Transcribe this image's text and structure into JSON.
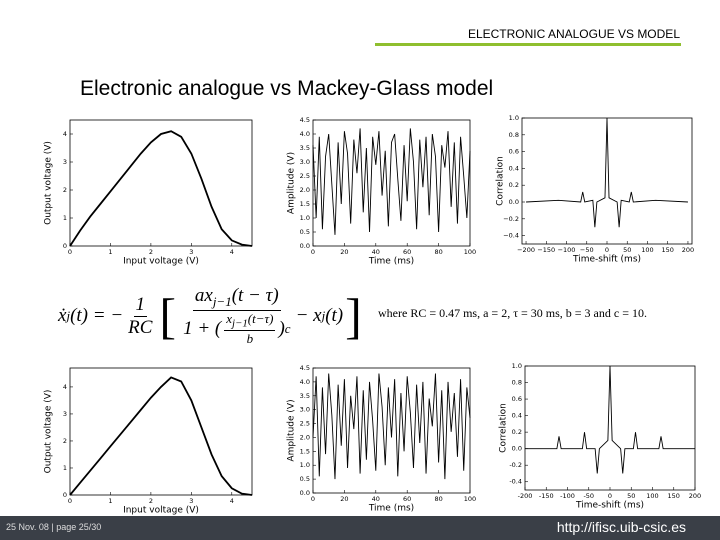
{
  "header": {
    "section": "ELECTRONIC ANALOGUE VS MODEL",
    "title": "Electronic analogue vs Mackey-Glass model"
  },
  "equation": {
    "lhs": "ẋ",
    "lhs_sub": "j",
    "lhs_arg": "(t) = −",
    "coef_num": "1",
    "coef_den": "RC",
    "num": "ax",
    "num_sub": "j−1",
    "num_arg": "(t − τ)",
    "den_one": "1 + (",
    "den_frac_num": "x",
    "den_frac_num_sub": "j−1",
    "den_frac_num_arg": "(t−τ)",
    "den_frac_den": "b",
    "den_close": ")",
    "den_exp": "c",
    "tail": "− x",
    "tail_sub": "j",
    "tail_arg": "(t)",
    "where": "where RC = 0.47 ms, a = 2, τ = 30 ms, b = 3 and c = 10."
  },
  "footer": {
    "date_page": "25 Nov. 08  |  page 25/30",
    "url": "http://ifisc.uib-csic.es"
  },
  "chart_data": [
    {
      "type": "line",
      "xlabel": "Input voltage (V)",
      "ylabel": "Output voltage (V)",
      "color": "#000000",
      "x": [
        0,
        0.25,
        0.5,
        0.75,
        1,
        1.25,
        1.5,
        1.75,
        2,
        2.25,
        2.5,
        2.75,
        3,
        3.25,
        3.5,
        3.75,
        4,
        4.25,
        4.5
      ],
      "values": [
        0,
        0.55,
        1.05,
        1.5,
        1.95,
        2.4,
        2.85,
        3.3,
        3.7,
        4.0,
        4.1,
        3.9,
        3.3,
        2.4,
        1.4,
        0.6,
        0.2,
        0.05,
        0
      ],
      "xlim": [
        0,
        4.5
      ],
      "ylim": [
        0,
        4.5
      ],
      "xticks": [
        0,
        1,
        2,
        3,
        4
      ],
      "yticks": [
        0,
        1,
        2,
        3,
        4
      ]
    },
    {
      "type": "line",
      "xlabel": "Time (ms)",
      "ylabel": "Amplitude (V)",
      "color": "#000000",
      "x": [
        0,
        2,
        4,
        6,
        8,
        10,
        12,
        14,
        16,
        18,
        20,
        22,
        24,
        26,
        28,
        30,
        32,
        34,
        36,
        38,
        40,
        42,
        44,
        46,
        48,
        50,
        52,
        54,
        56,
        58,
        60,
        62,
        64,
        66,
        68,
        70,
        72,
        74,
        76,
        78,
        80,
        82,
        84,
        86,
        88,
        90,
        92,
        94,
        96,
        98,
        100
      ],
      "values": [
        3.6,
        1.0,
        3.9,
        0.6,
        3.2,
        4.0,
        2.2,
        0.4,
        3.7,
        1.5,
        4.1,
        3.3,
        0.8,
        3.8,
        2.6,
        4.2,
        1.2,
        3.5,
        0.5,
        3.9,
        2.9,
        4.1,
        1.8,
        3.4,
        0.7,
        3.7,
        4.0,
        2.4,
        0.9,
        3.6,
        1.6,
        4.2,
        3.0,
        0.6,
        3.8,
        2.1,
        3.9,
        1.1,
        4.0,
        3.2,
        0.5,
        3.6,
        2.8,
        4.1,
        1.4,
        3.7,
        0.8,
        3.9,
        2.5,
        1.0,
        3.4
      ],
      "xlim": [
        0,
        100
      ],
      "ylim": [
        0,
        4.5
      ],
      "xticks": [
        0,
        20,
        40,
        60,
        80,
        100
      ],
      "yticks": [
        {
          "value": 0,
          "label": "0.0"
        },
        0.5,
        {
          "value": 1,
          "label": "1.0"
        },
        1.5,
        {
          "value": 2,
          "label": "2.0"
        },
        2.5,
        {
          "value": 3,
          "label": "3.0"
        },
        3.5,
        {
          "value": 4,
          "label": "4.0"
        },
        4.5
      ]
    },
    {
      "type": "line",
      "xlabel": "Time-shift (ms)",
      "ylabel": "Correlation",
      "color": "#000000",
      "x": [
        -200,
        -120,
        -65,
        -60,
        -55,
        -35,
        -30,
        -25,
        -5,
        0,
        5,
        25,
        30,
        35,
        55,
        60,
        65,
        120,
        200
      ],
      "values": [
        0,
        0.02,
        0,
        0.12,
        0,
        0.02,
        -0.3,
        0,
        0.05,
        1.0,
        0.05,
        0,
        -0.3,
        0.02,
        0,
        0.12,
        0,
        0.02,
        0
      ],
      "xlim": [
        -210,
        210
      ],
      "ylim": [
        -0.5,
        1.0
      ],
      "xticks": [
        {
          "value": -200,
          "label": "−200"
        },
        {
          "value": -150,
          "label": "−150"
        },
        {
          "value": -100,
          "label": "−100"
        },
        {
          "value": -50,
          "label": "−50"
        },
        0,
        50,
        100,
        150,
        200
      ],
      "yticks": [
        {
          "value": -0.4,
          "label": "−0.4"
        },
        {
          "value": -0.2,
          "label": "−0.2"
        },
        {
          "value": 0,
          "label": "0.0"
        },
        0.2,
        0.4,
        0.6,
        0.8,
        {
          "value": 1,
          "label": "1.0"
        }
      ]
    },
    {
      "type": "line",
      "xlabel": "Input voltage (V)",
      "ylabel": "Output voltage (V)",
      "color": "#000000",
      "x": [
        0,
        0.25,
        0.5,
        0.75,
        1,
        1.25,
        1.5,
        1.75,
        2,
        2.25,
        2.5,
        2.75,
        3,
        3.25,
        3.5,
        3.75,
        4,
        4.25,
        4.5
      ],
      "values": [
        0,
        0.45,
        0.9,
        1.35,
        1.8,
        2.25,
        2.7,
        3.15,
        3.6,
        4.0,
        4.35,
        4.2,
        3.5,
        2.5,
        1.5,
        0.7,
        0.25,
        0.05,
        0
      ],
      "xlim": [
        0,
        4.5
      ],
      "ylim": [
        0,
        4.7
      ],
      "xticks": [
        0,
        1,
        2,
        3,
        4
      ],
      "yticks": [
        0,
        1,
        2,
        3,
        4
      ]
    },
    {
      "type": "line",
      "xlabel": "Time (ms)",
      "ylabel": "Amplitude (V)",
      "color": "#000000",
      "x": [
        0,
        2,
        4,
        6,
        8,
        10,
        12,
        14,
        16,
        18,
        20,
        22,
        24,
        26,
        28,
        30,
        32,
        34,
        36,
        38,
        40,
        42,
        44,
        46,
        48,
        50,
        52,
        54,
        56,
        58,
        60,
        62,
        64,
        66,
        68,
        70,
        72,
        74,
        76,
        78,
        80,
        82,
        84,
        86,
        88,
        90,
        92,
        94,
        96,
        98,
        100
      ],
      "values": [
        2.0,
        4.2,
        0.6,
        3.8,
        1.4,
        4.3,
        2.8,
        0.5,
        3.9,
        1.7,
        4.1,
        0.9,
        3.5,
        2.3,
        4.2,
        0.7,
        3.7,
        1.2,
        4.0,
        2.6,
        0.8,
        4.3,
        3.1,
        1.0,
        3.8,
        2.0,
        4.1,
        0.6,
        3.6,
        1.5,
        4.2,
        2.9,
        0.9,
        3.9,
        1.8,
        4.0,
        0.7,
        3.4,
        2.4,
        4.3,
        1.1,
        3.7,
        0.5,
        4.0,
        2.2,
        3.6,
        1.3,
        4.1,
        0.8,
        3.8,
        2.7
      ],
      "xlim": [
        0,
        100
      ],
      "ylim": [
        0,
        4.5
      ],
      "xticks": [
        0,
        20,
        40,
        60,
        80,
        100
      ],
      "yticks": [
        {
          "value": 0,
          "label": "0.0"
        },
        0.5,
        {
          "value": 1,
          "label": "1.0"
        },
        1.5,
        {
          "value": 2,
          "label": "2.0"
        },
        2.5,
        {
          "value": 3,
          "label": "3.0"
        },
        3.5,
        {
          "value": 4,
          "label": "4.0"
        },
        4.5
      ]
    },
    {
      "type": "line",
      "xlabel": "Time-shift (ms)",
      "ylabel": "Correlation",
      "color": "#000000",
      "x": [
        -200,
        -125,
        -120,
        -115,
        -65,
        -60,
        -55,
        -35,
        -30,
        -25,
        -5,
        0,
        5,
        25,
        30,
        35,
        55,
        60,
        65,
        115,
        120,
        125,
        200
      ],
      "values": [
        0,
        0,
        0.15,
        0,
        0,
        0.2,
        0,
        0,
        -0.3,
        0,
        0.1,
        1.0,
        0.1,
        0,
        -0.3,
        0,
        0,
        0.2,
        0,
        0,
        0.15,
        0,
        0
      ],
      "xlim": [
        -200,
        200
      ],
      "ylim": [
        -0.5,
        1.0
      ],
      "xticks": [
        -200,
        -150,
        -100,
        -50,
        0,
        50,
        100,
        150,
        200
      ],
      "yticks": [
        -0.4,
        -0.2,
        {
          "value": 0,
          "label": "0.0"
        },
        0.2,
        0.4,
        0.6,
        0.8,
        {
          "value": 1,
          "label": "1.0"
        }
      ]
    }
  ]
}
